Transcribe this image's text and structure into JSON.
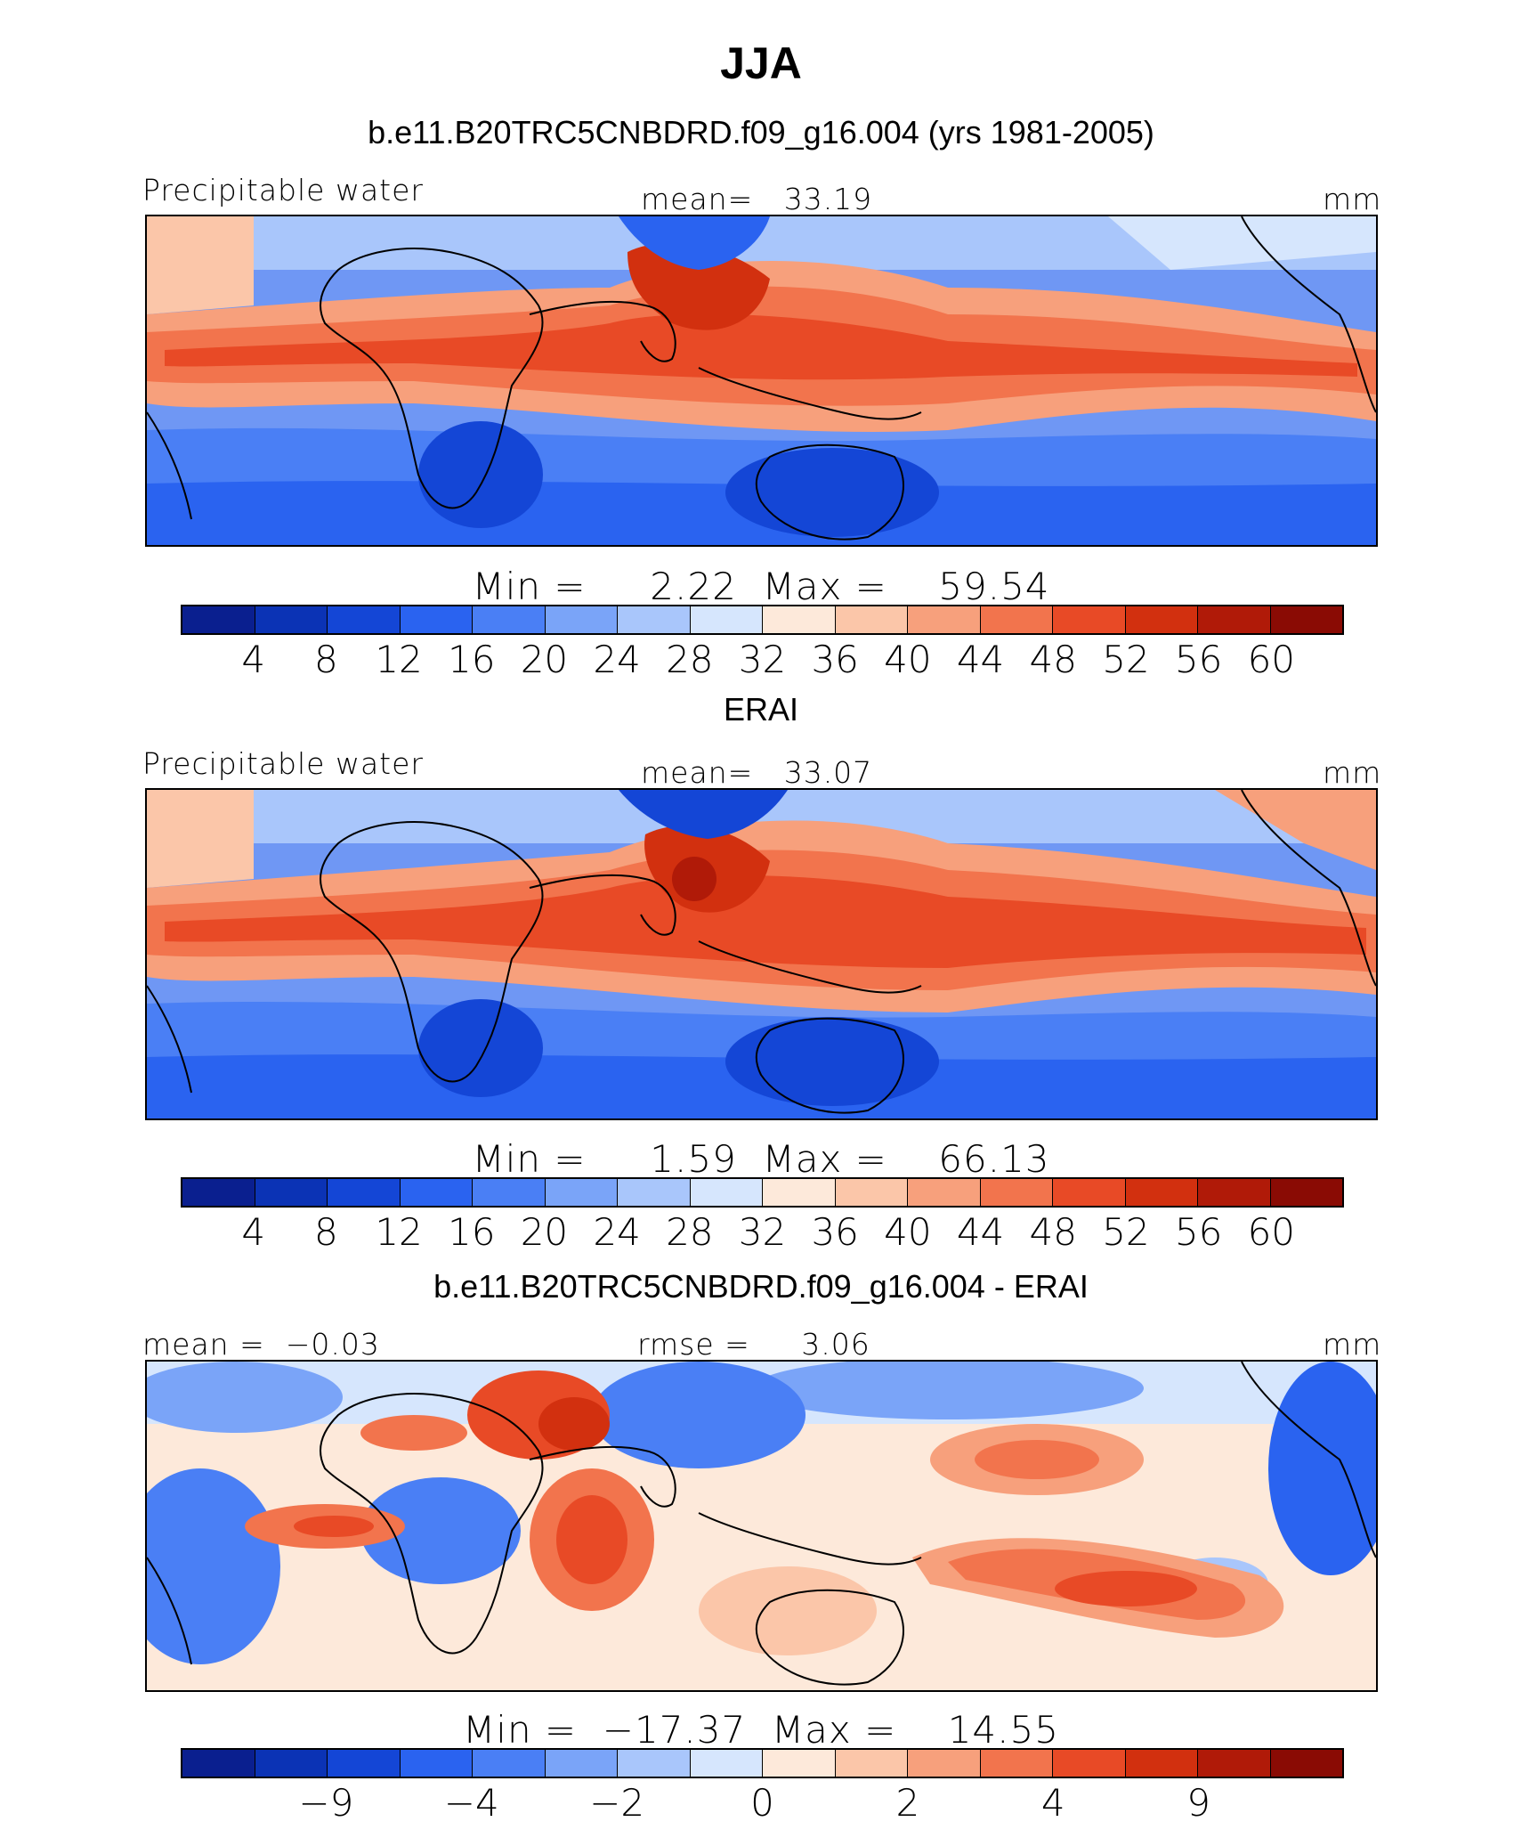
{
  "title": "JJA",
  "units": "mm",
  "variable": "Precipitable water",
  "panels": [
    {
      "id": "model",
      "subtitle": "b.e11.B20TRC5CNBDRD.f09_g16.004 (yrs 1981-2005)",
      "left_label": "Precipitable water",
      "center_label": "mean=   33.19",
      "right_label": "mm",
      "minmax": "Min =     2.22  Max =    59.54",
      "colorbar": {
        "colors": [
          "#0a1f8f",
          "#0b33b5",
          "#1446d6",
          "#2a63f0",
          "#4a7ff5",
          "#7aa4f8",
          "#a9c6fb",
          "#d6e6fd",
          "#fde9da",
          "#fbc6a9",
          "#f7a07c",
          "#f2744d",
          "#e84a26",
          "#d2300f",
          "#b01a08",
          "#8a0b04"
        ],
        "tick_labels": [
          "4",
          "8",
          "12",
          "16",
          "20",
          "24",
          "28",
          "32",
          "36",
          "40",
          "44",
          "48",
          "52",
          "56",
          "60"
        ]
      }
    },
    {
      "id": "obs",
      "subtitle": "ERAI",
      "left_label": "Precipitable water",
      "center_label": "mean=   33.07",
      "right_label": "mm",
      "minmax": "Min =     1.59  Max =    66.13",
      "colorbar": {
        "colors": [
          "#0a1f8f",
          "#0b33b5",
          "#1446d6",
          "#2a63f0",
          "#4a7ff5",
          "#7aa4f8",
          "#a9c6fb",
          "#d6e6fd",
          "#fde9da",
          "#fbc6a9",
          "#f7a07c",
          "#f2744d",
          "#e84a26",
          "#d2300f",
          "#b01a08",
          "#8a0b04"
        ],
        "tick_labels": [
          "4",
          "8",
          "12",
          "16",
          "20",
          "24",
          "28",
          "32",
          "36",
          "40",
          "44",
          "48",
          "52",
          "56",
          "60"
        ]
      }
    },
    {
      "id": "diff",
      "subtitle": "b.e11.B20TRC5CNBDRD.f09_g16.004 - ERAI",
      "left_label": "mean =  −0.03",
      "center_label": "rmse =     3.06",
      "right_label": "mm",
      "minmax": "Min =  −17.37  Max =    14.55",
      "colorbar": {
        "colors": [
          "#0a1f8f",
          "#0b33b5",
          "#1446d6",
          "#2a63f0",
          "#4a7ff5",
          "#7aa4f8",
          "#a9c6fb",
          "#d6e6fd",
          "#fde9da",
          "#fbc6a9",
          "#f7a07c",
          "#f2744d",
          "#e84a26",
          "#d2300f",
          "#b01a08",
          "#8a0b04"
        ],
        "tick_labels": [
          "−9",
          "−4",
          "−2",
          "0",
          "2",
          "4",
          "9"
        ]
      }
    }
  ]
}
